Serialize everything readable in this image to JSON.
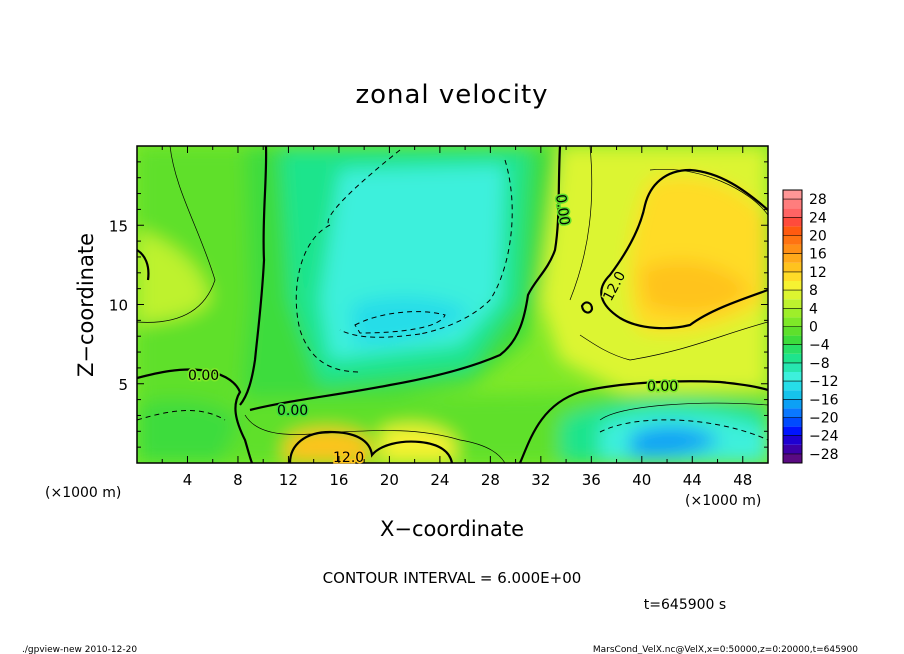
{
  "chart_data": {
    "type": "heatmap",
    "title": "zonal velocity",
    "xlabel": "X−coordinate",
    "ylabel": "Z−coordinate",
    "x_unit": "(×1000 m)",
    "y_unit": "(×1000 m)",
    "xlim": [
      0,
      50
    ],
    "ylim": [
      0,
      20
    ],
    "x_ticks": [
      4,
      8,
      12,
      16,
      20,
      24,
      28,
      32,
      36,
      40,
      44,
      48
    ],
    "y_ticks": [
      5,
      10,
      15
    ],
    "colorbar_labels": [
      "28",
      "24",
      "20",
      "16",
      "12",
      "8",
      "4",
      "0",
      "−4",
      "−8",
      "−12",
      "−16",
      "−20",
      "−24",
      "−28"
    ],
    "colorbar_levels": [
      -30,
      -28,
      -26,
      -24,
      -22,
      -20,
      -18,
      -16,
      -14,
      -12,
      -10,
      -8,
      -6,
      -4,
      -2,
      0,
      2,
      4,
      6,
      8,
      10,
      12,
      14,
      16,
      18,
      20,
      22,
      24,
      26,
      28,
      30
    ],
    "colorbar_colors": [
      "#5a0a82",
      "#3c00a8",
      "#1e00d2",
      "#0014ff",
      "#004bff",
      "#0a78ff",
      "#0ca0f5",
      "#16c3eb",
      "#26dde8",
      "#3df0dc",
      "#27e6b0",
      "#1ee48c",
      "#28e066",
      "#3ddc3c",
      "#5ee02c",
      "#7ee828",
      "#9eee2a",
      "#bef22e",
      "#dcf530",
      "#f6f232",
      "#ffdc28",
      "#ffc31e",
      "#ffa91a",
      "#ff8f16",
      "#ff7312",
      "#ff5a10",
      "#ff4b3c",
      "#ff6464",
      "#ff7d7d",
      "#ff9696"
    ],
    "contour_interval": "CONTOUR INTERVAL = 6.000E+00",
    "contour_labels": [
      "0.00",
      "0.00",
      "0.00",
      "0.00",
      "12.0",
      "12.0"
    ],
    "time_label": "t=645900 s"
  },
  "footer": {
    "left": "./gpview-new   2010-12-20",
    "right": "MarsCond_VelX.nc@VelX,x=0:50000,z=0:20000,t=645900"
  }
}
